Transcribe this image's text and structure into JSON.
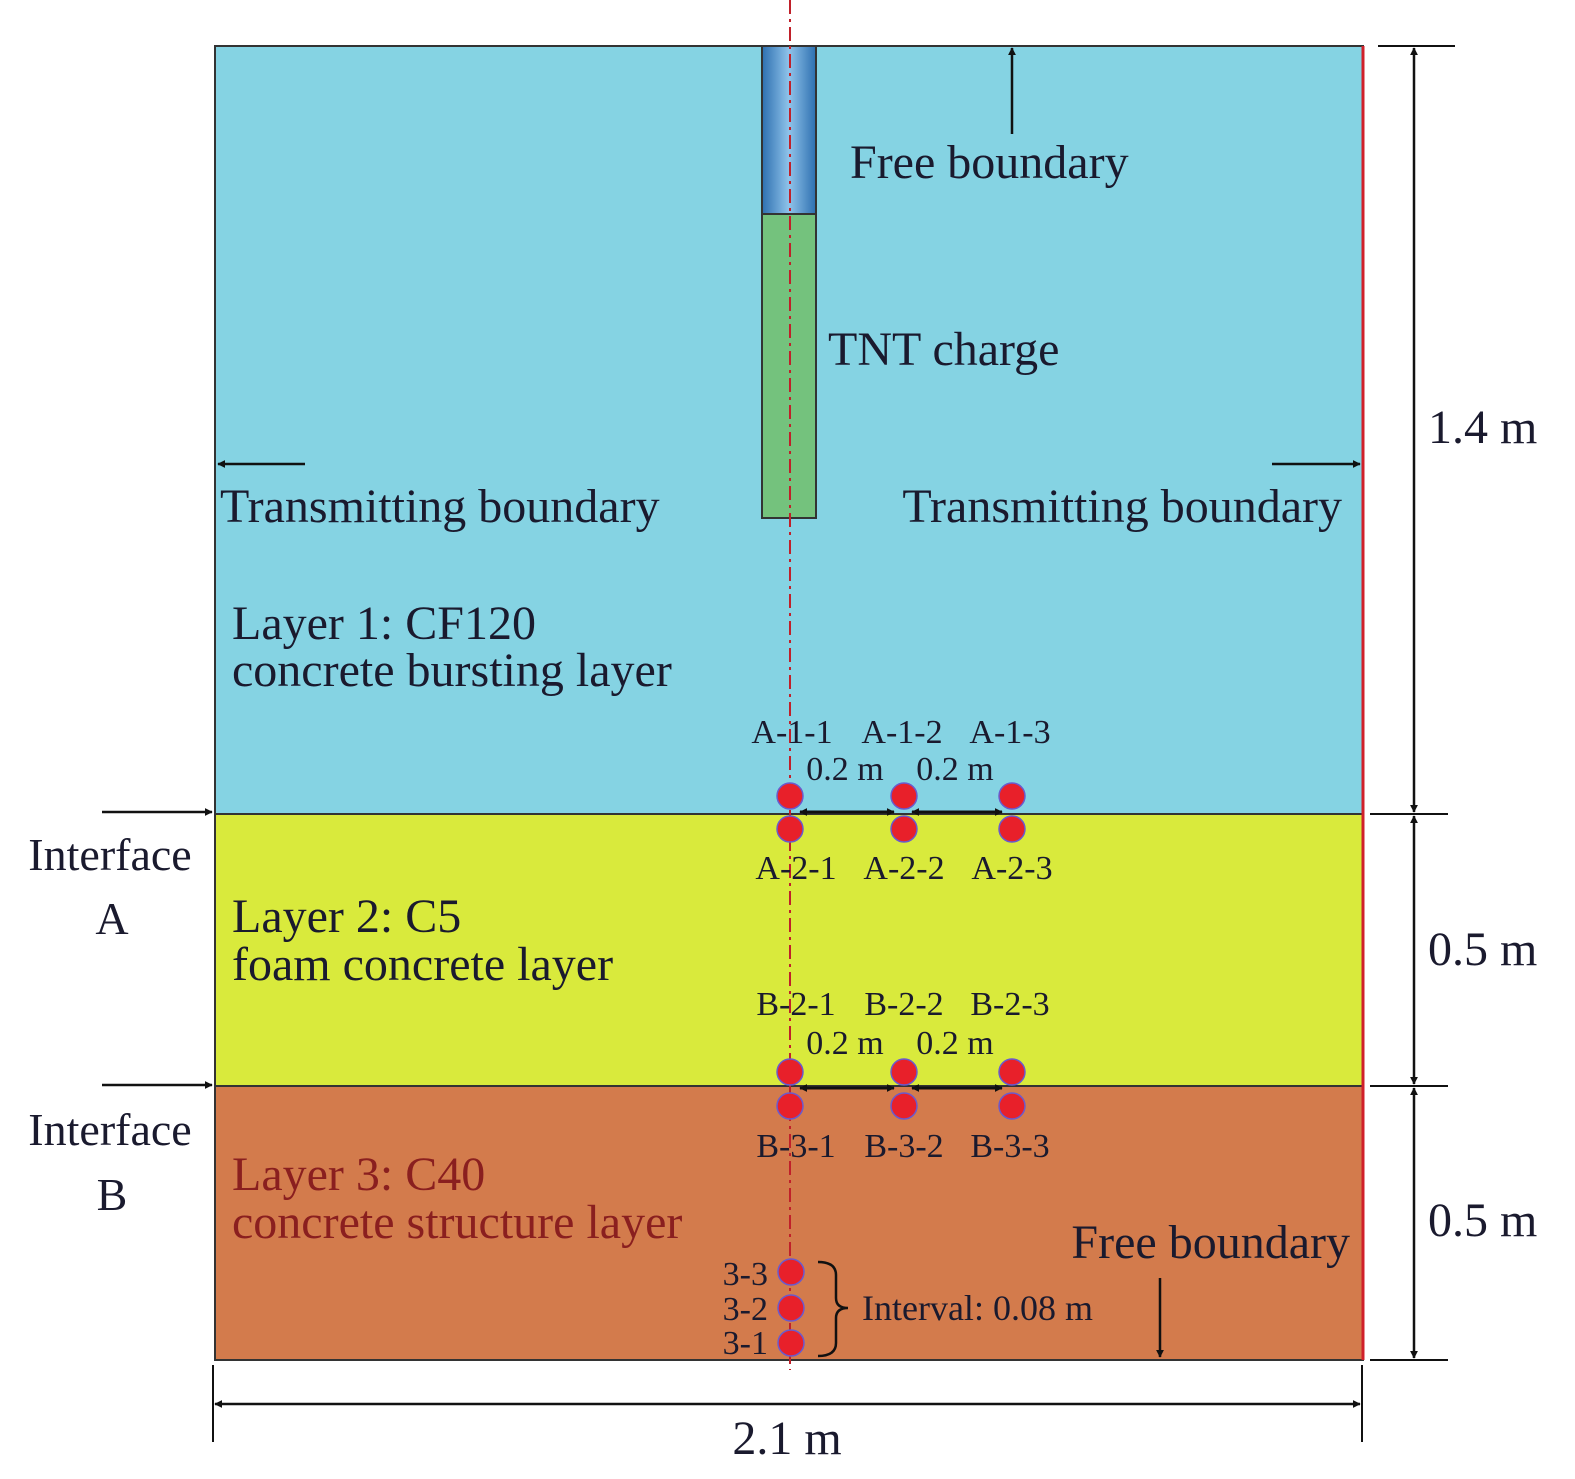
{
  "labels": {
    "free_boundary_top": "Free boundary",
    "tnt_charge": "TNT charge",
    "transmitting_left": "Transmitting boundary",
    "transmitting_right": "Transmitting boundary",
    "layer1_line1": "Layer 1: CF120",
    "layer1_line2": "concrete bursting layer",
    "layer2_line1": "Layer 2: C5",
    "layer2_line2": "foam concrete layer",
    "layer3_line1": "Layer 3: C40",
    "layer3_line2": "concrete structure layer",
    "free_boundary_bottom": "Free boundary",
    "interface_a_line1": "Interface",
    "interface_a_line2": "A",
    "interface_b_line1": "Interface",
    "interface_b_line2": "B",
    "interval": "Interval: 0.08 m"
  },
  "dimensions": {
    "layer1_height": "1.4 m",
    "layer2_height": "0.5 m",
    "layer3_height": "0.5 m",
    "total_width": "2.1 m"
  },
  "gauges": {
    "interface_a_top": [
      "A-1-1",
      "A-1-2",
      "A-1-3"
    ],
    "interface_a_bottom": [
      "A-2-1",
      "A-2-2",
      "A-2-3"
    ],
    "interface_a_spacing": [
      "0.2 m",
      "0.2 m"
    ],
    "interface_b_top": [
      "B-2-1",
      "B-2-2",
      "B-2-3"
    ],
    "interface_b_bottom": [
      "B-3-1",
      "B-3-2",
      "B-3-3"
    ],
    "interface_b_spacing": [
      "0.2 m",
      "0.2 m"
    ],
    "layer3_vertical": [
      "3-3",
      "3-2",
      "3-1"
    ]
  },
  "colors": {
    "layer1": "#85d3e3",
    "layer2": "#d9ea3c",
    "layer3": "#d37b4c",
    "tnt": "#74c27d",
    "stemming": "#3f86c6",
    "gauge": "#e8202a",
    "axis": "#c0202a"
  }
}
